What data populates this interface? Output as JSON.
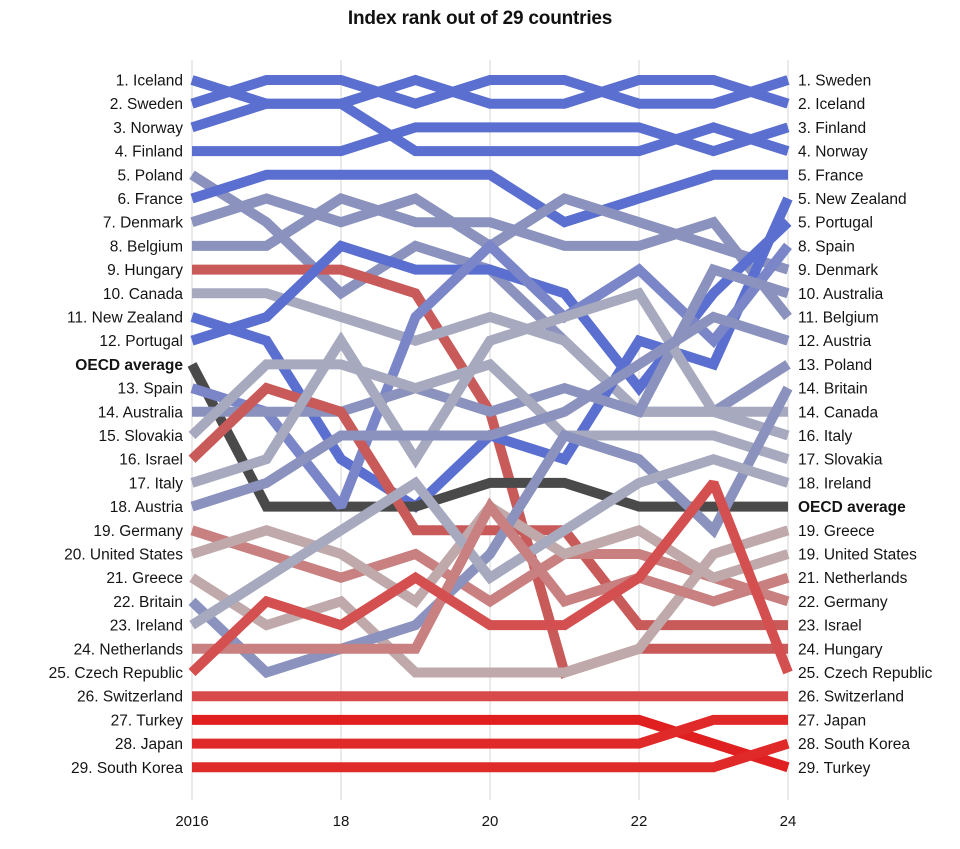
{
  "title": "Index rank out of 29 countries",
  "chart_data": {
    "type": "line",
    "subtype": "bump",
    "title": "Index rank out of 29 countries",
    "x": [
      2016,
      2017,
      2018,
      2019,
      2020,
      2021,
      2022,
      2023,
      2024
    ],
    "x_ticks": [
      2016,
      18,
      20,
      22,
      24
    ],
    "x_tick_labels": [
      "2016",
      "18",
      "20",
      "22",
      "24"
    ],
    "y_reversed": true,
    "ylim": [
      1,
      29
    ],
    "grid": "vertical lines at tick years",
    "left_labels": [
      {
        "text": "1. Iceland",
        "rank": 1
      },
      {
        "text": "2. Sweden",
        "rank": 2
      },
      {
        "text": "3. Norway",
        "rank": 3
      },
      {
        "text": "4. Finland",
        "rank": 4
      },
      {
        "text": "5. Poland",
        "rank": 5
      },
      {
        "text": "6. France",
        "rank": 6
      },
      {
        "text": "7. Denmark",
        "rank": 7
      },
      {
        "text": "8. Belgium",
        "rank": 8
      },
      {
        "text": "9. Hungary",
        "rank": 9
      },
      {
        "text": "10. Canada",
        "rank": 10
      },
      {
        "text": "11. New Zealand",
        "rank": 11
      },
      {
        "text": "12. Portugal",
        "rank": 12
      },
      {
        "text": "OECD average",
        "rank": 13,
        "bold": true
      },
      {
        "text": "13. Spain",
        "rank": 14
      },
      {
        "text": "14. Australia",
        "rank": 15
      },
      {
        "text": "15. Slovakia",
        "rank": 16
      },
      {
        "text": "16. Israel",
        "rank": 17
      },
      {
        "text": "17. Italy",
        "rank": 18
      },
      {
        "text": "18. Austria",
        "rank": 19
      },
      {
        "text": "19. Germany",
        "rank": 20
      },
      {
        "text": "20. United States",
        "rank": 21
      },
      {
        "text": "21. Greece",
        "rank": 22
      },
      {
        "text": "22. Britain",
        "rank": 23
      },
      {
        "text": "23. Ireland",
        "rank": 24
      },
      {
        "text": "24. Netherlands",
        "rank": 25
      },
      {
        "text": "25. Czech Republic",
        "rank": 26
      },
      {
        "text": "26. Switzerland",
        "rank": 27
      },
      {
        "text": "27. Turkey",
        "rank": 28
      },
      {
        "text": "28. Japan",
        "rank": 29
      },
      {
        "text": "29. South Korea",
        "rank": 30
      }
    ],
    "right_labels": [
      {
        "text": "1. Sweden",
        "rank": 1
      },
      {
        "text": "2. Iceland",
        "rank": 2
      },
      {
        "text": "3. Finland",
        "rank": 3
      },
      {
        "text": "4. Norway",
        "rank": 4
      },
      {
        "text": "5. France",
        "rank": 5
      },
      {
        "text": "5. New Zealand",
        "rank": 6
      },
      {
        "text": "5. Portugal",
        "rank": 7
      },
      {
        "text": "8. Spain",
        "rank": 8
      },
      {
        "text": "9. Denmark",
        "rank": 9
      },
      {
        "text": "10. Australia",
        "rank": 10
      },
      {
        "text": "11. Belgium",
        "rank": 11
      },
      {
        "text": "12. Austria",
        "rank": 12
      },
      {
        "text": "13. Poland",
        "rank": 13
      },
      {
        "text": "14. Britain",
        "rank": 14
      },
      {
        "text": "14. Canada",
        "rank": 15
      },
      {
        "text": "16. Italy",
        "rank": 16
      },
      {
        "text": "17. Slovakia",
        "rank": 17
      },
      {
        "text": "18. Ireland",
        "rank": 18
      },
      {
        "text": "OECD average",
        "rank": 19,
        "bold": true
      },
      {
        "text": "19. Greece",
        "rank": 20
      },
      {
        "text": "19. United States",
        "rank": 21
      },
      {
        "text": "21. Netherlands",
        "rank": 22
      },
      {
        "text": "22. Germany",
        "rank": 23
      },
      {
        "text": "23. Israel",
        "rank": 24
      },
      {
        "text": "24. Hungary",
        "rank": 25
      },
      {
        "text": "25. Czech Republic",
        "rank": 26
      },
      {
        "text": "26. Switzerland",
        "rank": 27
      },
      {
        "text": "27. Japan",
        "rank": 28
      },
      {
        "text": "28. South Korea",
        "rank": 29
      },
      {
        "text": "29. Turkey",
        "rank": 30
      }
    ],
    "series": [
      {
        "name": "Iceland",
        "color": "#5a6fcf",
        "values": [
          1,
          2,
          2,
          1,
          2,
          2,
          1,
          1,
          2
        ]
      },
      {
        "name": "Sweden",
        "color": "#5a6fcf",
        "values": [
          2,
          1,
          1,
          2,
          1,
          1,
          2,
          2,
          1
        ]
      },
      {
        "name": "Norway",
        "color": "#5a6fcf",
        "values": [
          3,
          2,
          2,
          4,
          4,
          4,
          4,
          3,
          4
        ]
      },
      {
        "name": "Finland",
        "color": "#5a6fcf",
        "values": [
          4,
          4,
          4,
          3,
          3,
          3,
          3,
          4,
          3
        ]
      },
      {
        "name": "Poland",
        "color": "#8a92bd",
        "values": [
          5,
          7,
          10,
          8,
          9,
          12,
          15,
          15,
          13
        ]
      },
      {
        "name": "France",
        "color": "#5a6fcf",
        "values": [
          6,
          5,
          5,
          5,
          5,
          7,
          6,
          5,
          5
        ]
      },
      {
        "name": "Denmark",
        "color": "#8a92bd",
        "values": [
          7,
          6,
          7,
          6,
          8,
          6,
          7,
          8,
          9
        ]
      },
      {
        "name": "Belgium",
        "color": "#8a92bd",
        "values": [
          8,
          8,
          6,
          7,
          7,
          8,
          8,
          7,
          11
        ]
      },
      {
        "name": "Hungary",
        "color": "#c95a5a",
        "values": [
          9,
          9,
          9,
          10,
          15,
          26,
          25,
          25,
          25
        ]
      },
      {
        "name": "Canada",
        "color": "#a7a9bf",
        "values": [
          10,
          10,
          11,
          12,
          11,
          12,
          15,
          15,
          15
        ]
      },
      {
        "name": "New Zealand",
        "color": "#5a6fcf",
        "values": [
          11,
          12,
          17,
          19,
          16,
          17,
          12,
          13,
          6
        ]
      },
      {
        "name": "Portugal",
        "color": "#5a6fcf",
        "values": [
          12,
          11,
          8,
          9,
          9,
          10,
          14,
          10,
          7
        ]
      },
      {
        "name": "OECD average",
        "color": "#4a4a4a",
        "values": [
          13,
          19,
          19,
          19,
          18,
          18,
          19,
          19,
          19
        ]
      },
      {
        "name": "Spain",
        "color": "#7b86c8",
        "values": [
          14,
          15,
          19,
          11,
          8,
          11,
          9,
          12,
          8
        ]
      },
      {
        "name": "Australia",
        "color": "#8a92bd",
        "values": [
          15,
          15,
          15,
          14,
          15,
          14,
          15,
          9,
          10
        ]
      },
      {
        "name": "Slovakia",
        "color": "#a7a9bf",
        "values": [
          16,
          13,
          13,
          14,
          13,
          16,
          16,
          16,
          17
        ]
      },
      {
        "name": "Israel",
        "color": "#c95a5a",
        "values": [
          17,
          14,
          15,
          20,
          20,
          20,
          24,
          24,
          24
        ]
      },
      {
        "name": "Italy",
        "color": "#a7a9bf",
        "values": [
          18,
          17,
          12,
          17,
          12,
          11,
          10,
          15,
          16
        ]
      },
      {
        "name": "Austria",
        "color": "#8a92bd",
        "values": [
          19,
          18,
          16,
          16,
          16,
          15,
          13,
          11,
          12
        ]
      },
      {
        "name": "Germany",
        "color": "#c98080",
        "values": [
          20,
          21,
          22,
          21,
          23,
          21,
          21,
          22,
          23
        ]
      },
      {
        "name": "United States",
        "color": "#c0a9ab",
        "values": [
          21,
          20,
          21,
          23,
          19,
          21,
          20,
          22,
          21
        ]
      },
      {
        "name": "Greece",
        "color": "#c0a9ab",
        "values": [
          22,
          24,
          23,
          26,
          26,
          26,
          25,
          21,
          20
        ]
      },
      {
        "name": "Britain",
        "color": "#8a92bd",
        "values": [
          23,
          26,
          25,
          24,
          21,
          16,
          17,
          20,
          14
        ]
      },
      {
        "name": "Ireland",
        "color": "#a7a9bf",
        "values": [
          24,
          22,
          20,
          18,
          22,
          20,
          18,
          17,
          18
        ]
      },
      {
        "name": "Netherlands",
        "color": "#c98080",
        "values": [
          25,
          25,
          25,
          25,
          19,
          23,
          22,
          23,
          22
        ]
      },
      {
        "name": "Czech Republic",
        "color": "#d44f4f",
        "values": [
          26,
          23,
          24,
          22,
          24,
          24,
          22,
          18,
          26
        ]
      },
      {
        "name": "Switzerland",
        "color": "#d84a4a",
        "values": [
          27,
          27,
          27,
          27,
          27,
          27,
          27,
          27,
          27
        ]
      },
      {
        "name": "Turkey",
        "color": "#e02020",
        "values": [
          28,
          28,
          28,
          28,
          28,
          28,
          28,
          29,
          30
        ]
      },
      {
        "name": "Japan",
        "color": "#e02a2a",
        "values": [
          29,
          29,
          29,
          29,
          29,
          29,
          29,
          28,
          28
        ]
      },
      {
        "name": "South Korea",
        "color": "#e02a2a",
        "values": [
          30,
          30,
          30,
          30,
          30,
          30,
          30,
          30,
          29
        ]
      }
    ]
  }
}
